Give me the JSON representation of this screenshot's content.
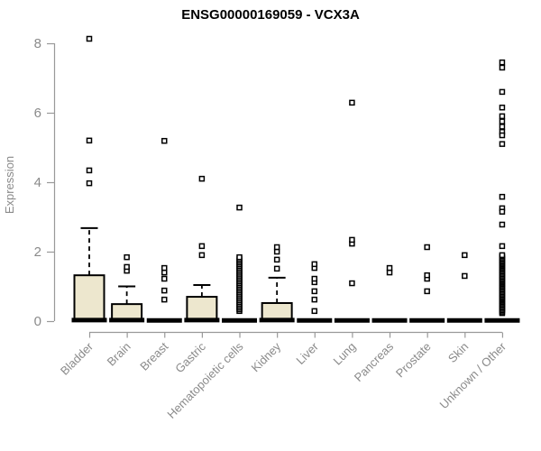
{
  "chart_data": {
    "type": "boxplot",
    "title": "ENSG00000169059 - VCX3A",
    "ylabel": "Expression",
    "xlabel": "",
    "ylim": [
      0,
      8.3
    ],
    "yticks": [
      0,
      2,
      4,
      6,
      8
    ],
    "grid": false,
    "legend": false,
    "categories": [
      "Bladder",
      "Brain",
      "Breast",
      "Gastric",
      "Hematopoietic cells",
      "Kidney",
      "Liver",
      "Lung",
      "Pancreas",
      "Prostate",
      "Skin",
      "Unknown / Other"
    ],
    "boxes": [
      {
        "category": "Bladder",
        "q1": 0.05,
        "median": 0.03,
        "q3": 1.32,
        "whisker_low": 0.05,
        "whisker_high": 2.68,
        "outliers": [
          3.97,
          4.34,
          5.2,
          8.13
        ]
      },
      {
        "category": "Brain",
        "q1": 0.04,
        "median": 0.03,
        "q3": 0.49,
        "whisker_low": 0.04,
        "whisker_high": 1.0,
        "outliers": [
          1.45,
          1.56,
          1.84
        ]
      },
      {
        "category": "Breast",
        "q1": 0,
        "median": 0.02,
        "q3": 0,
        "whisker_low": 0,
        "whisker_high": 0,
        "outliers": [
          0.62,
          0.88,
          1.22,
          1.4,
          1.53,
          5.19
        ]
      },
      {
        "category": "Gastric",
        "q1": 0.05,
        "median": 0.03,
        "q3": 0.7,
        "whisker_low": 0.05,
        "whisker_high": 1.04,
        "outliers": [
          1.9,
          2.16,
          4.1
        ]
      },
      {
        "category": "Hematopoietic cells",
        "q1": 0,
        "median": 0.02,
        "q3": 0,
        "whisker_low": 0,
        "whisker_high": 0,
        "outliers": [
          3.27,
          0.29,
          0.34,
          0.39,
          0.44,
          0.49,
          0.54,
          0.59,
          0.64,
          0.69,
          0.74,
          0.79,
          0.84,
          0.89,
          0.94,
          0.99,
          1.04,
          1.09,
          1.14,
          1.19,
          1.24,
          1.29,
          1.34,
          1.39,
          1.44,
          1.49,
          1.54,
          1.59,
          1.64,
          1.69,
          1.74,
          1.79,
          1.84
        ]
      },
      {
        "category": "Kidney",
        "q1": 0.04,
        "median": 0.03,
        "q3": 0.52,
        "whisker_low": 0.04,
        "whisker_high": 1.25,
        "outliers": [
          1.51,
          1.77,
          2.0,
          2.13
        ]
      },
      {
        "category": "Liver",
        "q1": 0,
        "median": 0.02,
        "q3": 0,
        "whisker_low": 0,
        "whisker_high": 0,
        "outliers": [
          0.29,
          0.62,
          0.86,
          1.12,
          1.22,
          1.53,
          1.64
        ]
      },
      {
        "category": "Lung",
        "q1": 0,
        "median": 0.02,
        "q3": 0,
        "whisker_low": 0,
        "whisker_high": 0,
        "outliers": [
          1.09,
          2.23,
          2.34,
          6.29
        ]
      },
      {
        "category": "Pancreas",
        "q1": 0,
        "median": 0.02,
        "q3": 0,
        "whisker_low": 0,
        "whisker_high": 0,
        "outliers": [
          1.4,
          1.53
        ]
      },
      {
        "category": "Prostate",
        "q1": 0,
        "median": 0.02,
        "q3": 0,
        "whisker_low": 0,
        "whisker_high": 0,
        "outliers": [
          0.86,
          1.22,
          1.32,
          2.13
        ]
      },
      {
        "category": "Skin",
        "q1": 0,
        "median": 0.02,
        "q3": 0,
        "whisker_low": 0,
        "whisker_high": 0,
        "outliers": [
          1.3,
          1.9
        ]
      },
      {
        "category": "Unknown / Other",
        "q1": 0,
        "median": 0.02,
        "q3": 0,
        "whisker_low": 0,
        "whisker_high": 0,
        "outliers": [
          7.45,
          7.3,
          6.6,
          6.15,
          5.9,
          5.75,
          5.6,
          5.45,
          5.35,
          5.1,
          3.58,
          3.25,
          3.15,
          2.78,
          2.16,
          0.23,
          0.27,
          0.31,
          0.35,
          0.39,
          0.43,
          0.47,
          0.51,
          0.55,
          0.59,
          0.63,
          0.67,
          0.71,
          0.75,
          0.79,
          0.83,
          0.87,
          0.91,
          0.95,
          0.99,
          1.03,
          1.07,
          1.11,
          1.15,
          1.19,
          1.23,
          1.27,
          1.31,
          1.35,
          1.39,
          1.43,
          1.47,
          1.51,
          1.55,
          1.59,
          1.63,
          1.67,
          1.71,
          1.75,
          1.79,
          1.83,
          1.87,
          1.9
        ]
      }
    ],
    "colors": {
      "box_fill": "#EDE7CE",
      "box_border": "#000000",
      "outlier_border": "#000000",
      "outlier_fill": "#ffffff",
      "axis": "#999999",
      "tick_label": "#8a8a8a",
      "title": "#000000",
      "background": "#ffffff"
    }
  }
}
